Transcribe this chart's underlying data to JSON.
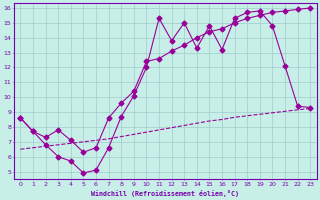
{
  "xlabel": "Windchill (Refroidissement éolien,°C)",
  "bg_color": "#c8eee8",
  "line_color": "#990099",
  "grid_color": "#a0cccc",
  "spine_color": "#7700aa",
  "tick_color": "#7700aa",
  "xlim": [
    -0.5,
    23.5
  ],
  "ylim": [
    4.5,
    16.3
  ],
  "yticks": [
    5,
    6,
    7,
    8,
    9,
    10,
    11,
    12,
    13,
    14,
    15,
    16
  ],
  "xticks": [
    0,
    1,
    2,
    3,
    4,
    5,
    6,
    7,
    8,
    9,
    10,
    11,
    12,
    13,
    14,
    15,
    16,
    17,
    18,
    19,
    20,
    21,
    22,
    23
  ],
  "line1_x": [
    0,
    1,
    2,
    3,
    4,
    5,
    6,
    7,
    8,
    9,
    10,
    11,
    12,
    13,
    14,
    15,
    16,
    17,
    18,
    19,
    20,
    21,
    22,
    23
  ],
  "line1_y": [
    8.6,
    7.7,
    6.8,
    6.0,
    5.7,
    4.9,
    5.1,
    6.6,
    8.7,
    10.1,
    12.0,
    15.3,
    13.8,
    15.0,
    13.3,
    14.8,
    13.2,
    15.3,
    15.7,
    15.8,
    14.8,
    12.1,
    9.4,
    9.3
  ],
  "line2_x": [
    0,
    1,
    2,
    3,
    4,
    5,
    6,
    7,
    8,
    9,
    10,
    11,
    12,
    13,
    14,
    15,
    16,
    17,
    18,
    19,
    20,
    21,
    22,
    23
  ],
  "line2_y": [
    8.6,
    7.7,
    7.3,
    7.8,
    7.1,
    6.3,
    6.6,
    8.6,
    9.6,
    10.4,
    12.4,
    12.6,
    13.1,
    13.5,
    14.0,
    14.4,
    14.6,
    15.0,
    15.3,
    15.5,
    15.7,
    15.8,
    15.9,
    16.0
  ],
  "line3_x": [
    0,
    1,
    2,
    3,
    4,
    5,
    6,
    7,
    8,
    9,
    10,
    11,
    12,
    13,
    14,
    15,
    16,
    17,
    18,
    19,
    20,
    21,
    22,
    23
  ],
  "line3_y": [
    6.5,
    6.6,
    6.7,
    6.8,
    6.9,
    7.0,
    7.1,
    7.2,
    7.35,
    7.5,
    7.65,
    7.8,
    7.95,
    8.1,
    8.25,
    8.4,
    8.5,
    8.65,
    8.75,
    8.85,
    8.95,
    9.05,
    9.15,
    9.25
  ],
  "markersize": 2.5,
  "linewidth": 0.8
}
